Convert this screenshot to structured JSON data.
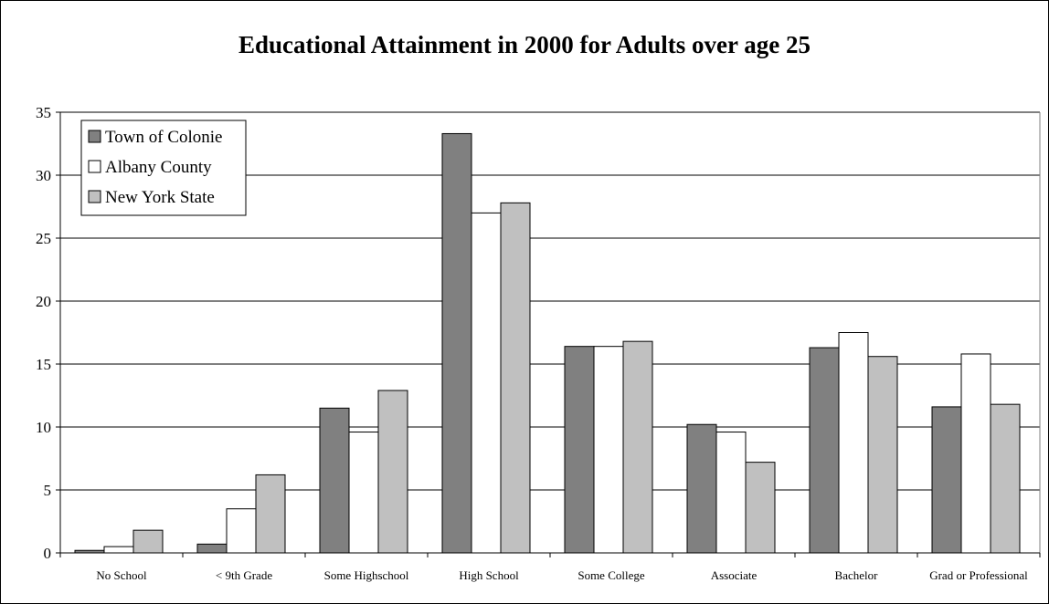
{
  "chart_data": {
    "type": "bar",
    "title": "Educational Attainment in 2000 for Adults over age 25",
    "xlabel": "",
    "ylabel": "",
    "ylim": [
      0,
      35
    ],
    "yticks": [
      0,
      5,
      10,
      15,
      20,
      25,
      30,
      35
    ],
    "grid": "horizontal",
    "legend_position": "top-left",
    "categories": [
      "No School",
      "< 9th Grade",
      "Some Highschool",
      "High School",
      "Some College",
      "Associate",
      "Bachelor",
      "Grad or Professional"
    ],
    "series": [
      {
        "name": "Town of Colonie",
        "color": "#808080",
        "values": [
          0.2,
          0.7,
          11.5,
          33.3,
          16.4,
          10.2,
          16.3,
          11.6
        ]
      },
      {
        "name": "Albany County",
        "color": "#ffffff",
        "values": [
          0.5,
          3.5,
          9.6,
          27.0,
          16.4,
          9.6,
          17.5,
          15.8
        ]
      },
      {
        "name": "New York State",
        "color": "#c0c0c0",
        "values": [
          1.8,
          6.2,
          12.9,
          27.8,
          16.8,
          7.2,
          15.6,
          11.8
        ]
      }
    ]
  }
}
